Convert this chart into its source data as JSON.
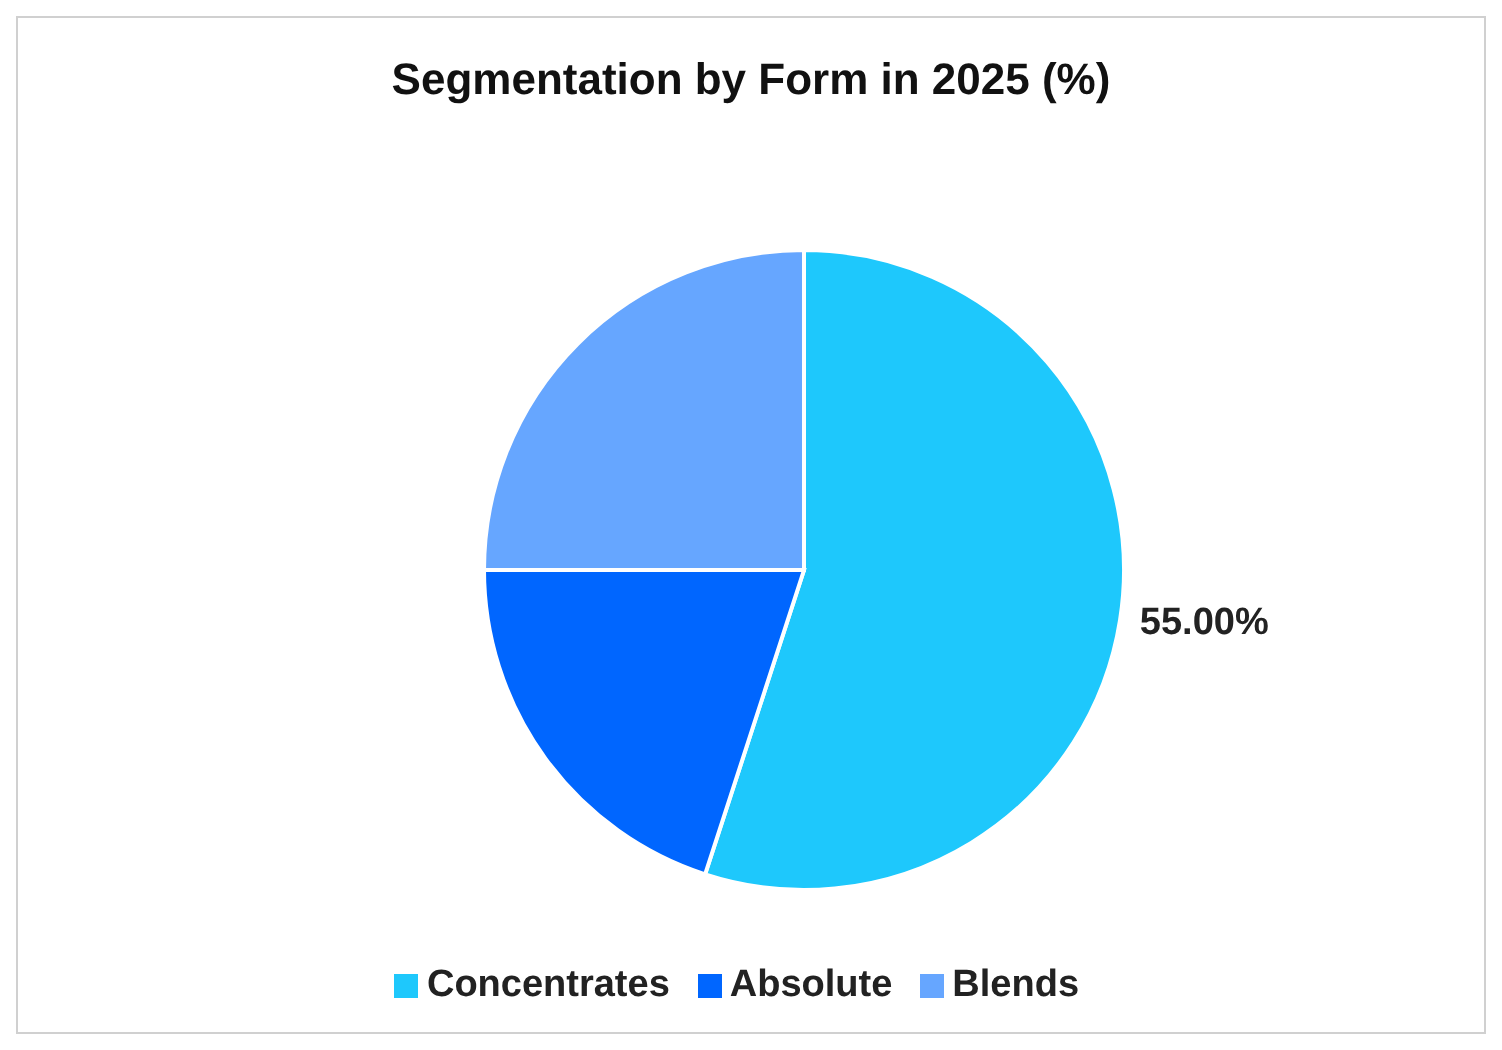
{
  "chart_data": {
    "type": "pie",
    "title": "Segmentation by Form in 2025 (%)",
    "categories": [
      "Concentrates",
      "Absolute",
      "Blends"
    ],
    "values": [
      55,
      20,
      25
    ],
    "colors": [
      "#1ec8fc",
      "#0066ff",
      "#66a6ff"
    ],
    "value_labels": [
      "55.00%",
      null,
      null
    ],
    "legend": "bottom"
  }
}
